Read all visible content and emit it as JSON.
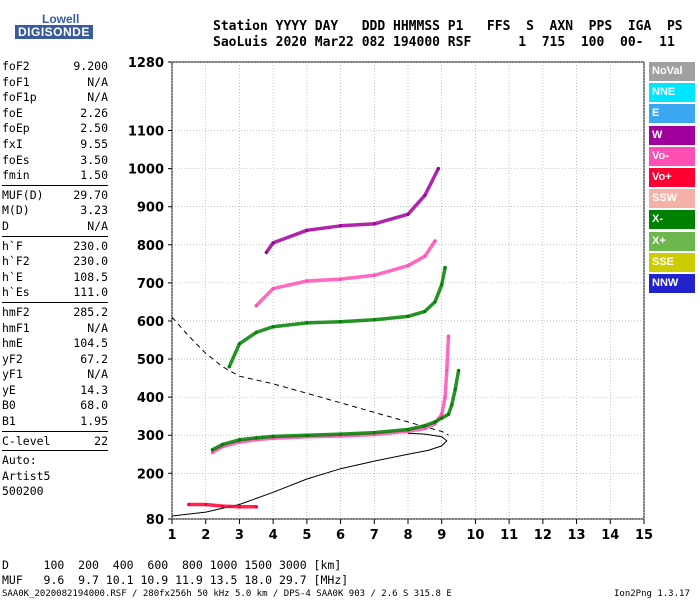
{
  "logo": {
    "top": "Lowell",
    "bottom": "DIGISONDE"
  },
  "header": {
    "line1": "Station YYYY DAY   DDD HHMMSS P1   FFS  S  AXN  PPS  IGA  PS",
    "line2": "SaoLuis 2020 Mar22 082 194000 RSF      1  715  100  00-  11"
  },
  "params": [
    {
      "label": "foF2",
      "value": "9.200"
    },
    {
      "label": "foF1",
      "value": "N/A"
    },
    {
      "label": "foF1p",
      "value": "N/A"
    },
    {
      "label": "foE",
      "value": "2.26"
    },
    {
      "label": "foEp",
      "value": "2.50"
    },
    {
      "label": "fxI",
      "value": "9.55"
    },
    {
      "label": "foEs",
      "value": "3.50"
    },
    {
      "label": "fmin",
      "value": "1.50"
    },
    {
      "label": "MUF(D)",
      "value": "29.70"
    },
    {
      "label": "M(D)",
      "value": "3.23"
    },
    {
      "label": "D",
      "value": "N/A"
    },
    {
      "label": "h`F",
      "value": "230.0"
    },
    {
      "label": "h`F2",
      "value": "230.0"
    },
    {
      "label": "h`E",
      "value": "108.5"
    },
    {
      "label": "h`Es",
      "value": "111.0"
    },
    {
      "label": "hmF2",
      "value": "285.2"
    },
    {
      "label": "hmF1",
      "value": "N/A"
    },
    {
      "label": "hmE",
      "value": "104.5"
    },
    {
      "label": "yF2",
      "value": "67.2"
    },
    {
      "label": "yF1",
      "value": "N/A"
    },
    {
      "label": "yE",
      "value": "14.3"
    },
    {
      "label": "B0",
      "value": "68.0"
    },
    {
      "label": "B1",
      "value": "1.95"
    },
    {
      "label": "C-level",
      "value": "22"
    }
  ],
  "auto": {
    "line1": "Auto:",
    "line2": "Artist5",
    "line3": "500200"
  },
  "legend": [
    {
      "label": "NoVal",
      "color": "#a0a0a0"
    },
    {
      "label": "NNE",
      "color": "#00e5ff"
    },
    {
      "label": "E",
      "color": "#3aa7f0"
    },
    {
      "label": "W",
      "color": "#a0009c"
    },
    {
      "label": "Vo-",
      "color": "#ff4fb4"
    },
    {
      "label": "Vo+",
      "color": "#ff0033"
    },
    {
      "label": "SSW",
      "color": "#f5b0a8"
    },
    {
      "label": "X-",
      "color": "#008000"
    },
    {
      "label": "X+",
      "color": "#6cb84e"
    },
    {
      "label": "SSE",
      "color": "#cccc00"
    },
    {
      "label": "NNW",
      "color": "#2222cc"
    }
  ],
  "footer": {
    "line1": "D     100  200  400  600  800 1000 1500 3000 [km]",
    "line2": "MUF   9.6  9.7 10.1 10.9 11.9 13.5 18.0 29.7 [MHz]",
    "line3": "SAA0K_2020082194000.RSF / 280fx256h 50 kHz 5.0 km / DPS-4 SAA0K 903 / 2.6 S 315.8 E",
    "version": "Ion2Png 1.3.17"
  },
  "chart_data": {
    "type": "scatter",
    "xlim": [
      1,
      15
    ],
    "ylim": [
      80,
      1280
    ],
    "x_ticks": [
      1,
      2,
      3,
      4,
      5,
      6,
      7,
      8,
      9,
      10,
      11,
      12,
      13,
      14,
      15
    ],
    "y_ticks": [
      80,
      200,
      300,
      400,
      500,
      600,
      700,
      800,
      900,
      1000,
      1100,
      1280
    ],
    "grid": true,
    "profile_curve": [
      [
        1.0,
        88
      ],
      [
        2.0,
        98
      ],
      [
        3.0,
        118
      ],
      [
        4.0,
        150
      ],
      [
        5.0,
        185
      ],
      [
        6.0,
        212
      ],
      [
        7.0,
        232
      ],
      [
        8.0,
        250
      ],
      [
        8.6,
        260
      ],
      [
        9.0,
        272
      ],
      [
        9.15,
        285
      ],
      [
        9.0,
        296
      ],
      [
        8.5,
        303
      ],
      [
        8.0,
        305
      ]
    ],
    "mufd_curve": [
      [
        1.0,
        610
      ],
      [
        1.5,
        560
      ],
      [
        2.0,
        515
      ],
      [
        2.5,
        480
      ],
      [
        3.0,
        455
      ],
      [
        3.5,
        445
      ],
      [
        4.0,
        435
      ],
      [
        5.0,
        410
      ],
      [
        6.0,
        385
      ],
      [
        7.0,
        360
      ],
      [
        8.0,
        335
      ],
      [
        8.5,
        322
      ],
      [
        9.0,
        310
      ],
      [
        9.2,
        300
      ]
    ],
    "traces": {
      "F2_ordinary": [
        [
          2.2,
          255
        ],
        [
          2.5,
          270
        ],
        [
          3.0,
          282
        ],
        [
          3.5,
          288
        ],
        [
          4.0,
          292
        ],
        [
          5.0,
          296
        ],
        [
          6.0,
          298
        ],
        [
          7.0,
          302
        ],
        [
          8.0,
          310
        ],
        [
          8.5,
          318
        ],
        [
          8.8,
          330
        ],
        [
          9.0,
          355
        ],
        [
          9.1,
          400
        ],
        [
          9.15,
          470
        ],
        [
          9.2,
          560
        ]
      ],
      "F2_extraordinary": [
        [
          2.2,
          262
        ],
        [
          2.5,
          276
        ],
        [
          3.0,
          288
        ],
        [
          3.5,
          293
        ],
        [
          4.0,
          297
        ],
        [
          5.0,
          300
        ],
        [
          6.0,
          303
        ],
        [
          7.0,
          307
        ],
        [
          8.0,
          315
        ],
        [
          8.5,
          325
        ],
        [
          8.8,
          335
        ],
        [
          9.0,
          345
        ],
        [
          9.2,
          355
        ],
        [
          9.3,
          380
        ],
        [
          9.4,
          420
        ],
        [
          9.5,
          470
        ]
      ],
      "F2_second_hop": [
        [
          2.7,
          480
        ],
        [
          3.0,
          540
        ],
        [
          3.5,
          570
        ],
        [
          4.0,
          585
        ],
        [
          5.0,
          595
        ],
        [
          6.0,
          598
        ],
        [
          7.0,
          603
        ],
        [
          8.0,
          612
        ],
        [
          8.5,
          625
        ],
        [
          8.8,
          650
        ],
        [
          9.0,
          695
        ],
        [
          9.1,
          740
        ]
      ],
      "F2_third_hop": [
        [
          3.5,
          640
        ],
        [
          4.0,
          685
        ],
        [
          5.0,
          705
        ],
        [
          6.0,
          710
        ],
        [
          7.0,
          720
        ],
        [
          8.0,
          745
        ],
        [
          8.5,
          770
        ],
        [
          8.8,
          810
        ]
      ],
      "F2_fourth_hop": [
        [
          3.8,
          780
        ],
        [
          4.0,
          805
        ],
        [
          5.0,
          838
        ],
        [
          6.0,
          850
        ],
        [
          7.0,
          855
        ],
        [
          8.0,
          880
        ],
        [
          8.5,
          930
        ],
        [
          8.9,
          1000
        ]
      ],
      "E_sporadic": [
        [
          1.5,
          118
        ],
        [
          2.0,
          118
        ],
        [
          2.5,
          114
        ],
        [
          3.0,
          112
        ],
        [
          3.5,
          112
        ]
      ]
    }
  }
}
